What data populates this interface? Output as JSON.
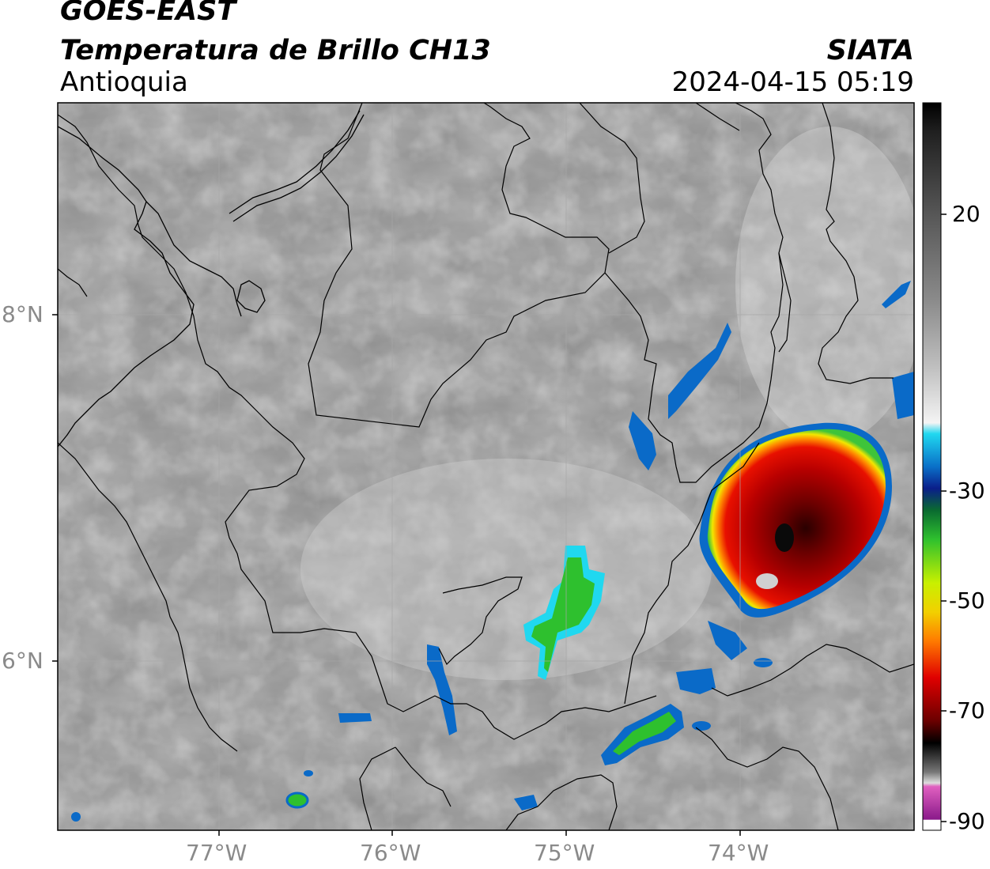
{
  "header": {
    "satellite": "GOES-EAST",
    "product": "Temperatura de Brillo CH13",
    "region": "Antioquia",
    "organization": "SIATA",
    "timestamp": "2024-04-15 05:19"
  },
  "map": {
    "latitude_labels": [
      "8°N",
      "6°N"
    ],
    "longitude_labels": [
      "77°W",
      "76°W",
      "75°W",
      "74°W"
    ]
  },
  "colorbar": {
    "ticks": [
      "20",
      "-30",
      "-50",
      "-70",
      "-90"
    ]
  },
  "colors": {
    "cold_core": "#8b0000",
    "red": "#e00000",
    "yellow": "#f2e600",
    "green": "#3ec43a",
    "blue": "#0a3aa8",
    "cyan": "#20d8f0",
    "magenta": "#d040c0"
  }
}
